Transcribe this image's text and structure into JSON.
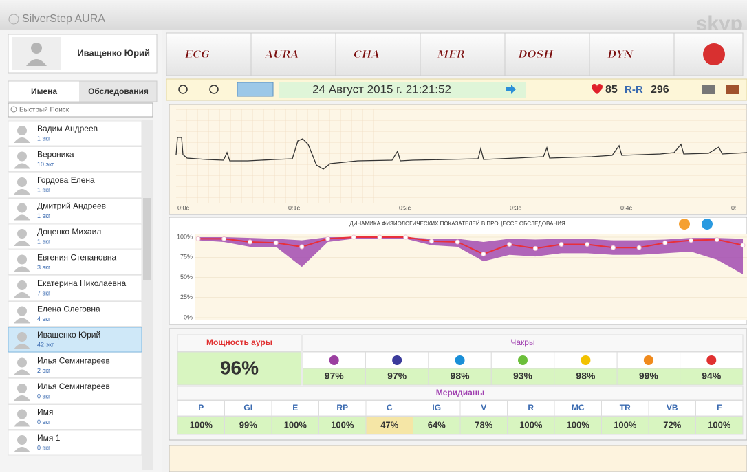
{
  "app": {
    "title": "SilverStep AURA",
    "watermark": "skyp"
  },
  "profile": {
    "name": "Иващенко Юрий"
  },
  "sidebar": {
    "tabs": [
      "Имена",
      "Обследования"
    ],
    "search_placeholder": "Быстрый Поиск",
    "patients": [
      {
        "name": "Вадим Андреев",
        "count": "1 экг"
      },
      {
        "name": "Вероника",
        "count": "10 экг"
      },
      {
        "name": "Гордова Елена",
        "count": "1 экг"
      },
      {
        "name": "Дмитрий Андреев",
        "count": "1 экг"
      },
      {
        "name": "Доценко Михаил",
        "count": "1 экг"
      },
      {
        "name": "Евгения Степановна",
        "count": "3 экг"
      },
      {
        "name": "Екатерина Николаевна",
        "count": "7 экг"
      },
      {
        "name": "Елена Олеговна",
        "count": "4 экг"
      },
      {
        "name": "Иващенко Юрий",
        "count": "42 экг",
        "selected": true
      },
      {
        "name": "Илья Семингареев",
        "count": "2 экг"
      },
      {
        "name": "Илья Семингареев",
        "count": "0 экг"
      },
      {
        "name": "Имя",
        "count": "0 экг"
      },
      {
        "name": "Имя 1",
        "count": "0 экг"
      }
    ]
  },
  "nav_tabs": [
    "ECG",
    "AURA",
    "CHA",
    "MER",
    "DOSH",
    "DYN"
  ],
  "toolbar": {
    "datetime": "24 Август 2015 г. 21:21:52",
    "heart_rate": "85",
    "rr_label": "R-R",
    "rr_value": "296"
  },
  "ecg": {
    "xticks": [
      "0:0c",
      "0:1c",
      "0:2c",
      "0:3c",
      "0:4c",
      "0:"
    ]
  },
  "chart_data": {
    "type": "line",
    "title": "ДИНАМИКА ФИЗИОЛОГИЧЕСКИХ ПОКАЗАТЕЛЕЙ В ПРОЦЕССЕ ОБСЛЕДОВАНИЯ",
    "ylim": [
      0,
      100
    ],
    "yticks": [
      {
        "value": 0,
        "label": "0%"
      },
      {
        "value": 25,
        "label": "25%"
      },
      {
        "value": 50,
        "label": "50%"
      },
      {
        "value": 75,
        "label": "75%"
      },
      {
        "value": 100,
        "label": "100%"
      }
    ],
    "series": [
      {
        "color": "#e8303a",
        "values": [
          98,
          98,
          94,
          93,
          88,
          98,
          100,
          100,
          100,
          95,
          94,
          79,
          91,
          86,
          91,
          91,
          87,
          87,
          93,
          96,
          97,
          90
        ]
      }
    ],
    "band": {
      "color": "#a24bb0",
      "high": [
        100,
        100,
        99,
        98,
        96,
        100,
        100,
        100,
        100,
        98,
        98,
        94,
        98,
        97,
        98,
        98,
        96,
        96,
        97,
        99,
        99,
        98
      ],
      "low": [
        96,
        94,
        88,
        88,
        63,
        94,
        98,
        98,
        98,
        90,
        88,
        70,
        78,
        76,
        80,
        80,
        78,
        78,
        80,
        82,
        72,
        54
      ]
    }
  },
  "aura": {
    "power_label": "Мощность ауры",
    "power_value": "96%",
    "chakras_label": "Чакры",
    "chakras": [
      {
        "value": "97%",
        "color": "#9b3fa0"
      },
      {
        "value": "97%",
        "color": "#3b3b9b"
      },
      {
        "value": "98%",
        "color": "#1a8fd8"
      },
      {
        "value": "93%",
        "color": "#6bbf3a"
      },
      {
        "value": "98%",
        "color": "#f2c200"
      },
      {
        "value": "99%",
        "color": "#f08a1c"
      },
      {
        "value": "94%",
        "color": "#e03030"
      }
    ],
    "meridians_label": "Меридианы",
    "meridians": [
      {
        "name": "P",
        "value": "100%",
        "color": "#d8f5c0"
      },
      {
        "name": "GI",
        "value": "99%",
        "color": "#d8f5c0"
      },
      {
        "name": "E",
        "value": "100%",
        "color": "#d8f5c0"
      },
      {
        "name": "RP",
        "value": "100%",
        "color": "#d8f5c0"
      },
      {
        "name": "C",
        "value": "47%",
        "color": "#f5e6a6"
      },
      {
        "name": "IG",
        "value": "64%",
        "color": "#d8f5c0"
      },
      {
        "name": "V",
        "value": "78%",
        "color": "#d8f5c0"
      },
      {
        "name": "R",
        "value": "100%",
        "color": "#d8f5c0"
      },
      {
        "name": "MC",
        "value": "100%",
        "color": "#d8f5c0"
      },
      {
        "name": "TR",
        "value": "100%",
        "color": "#d8f5c0"
      },
      {
        "name": "VB",
        "value": "72%",
        "color": "#d8f5c0"
      },
      {
        "name": "F",
        "value": "100%",
        "color": "#d8f5c0"
      }
    ]
  }
}
